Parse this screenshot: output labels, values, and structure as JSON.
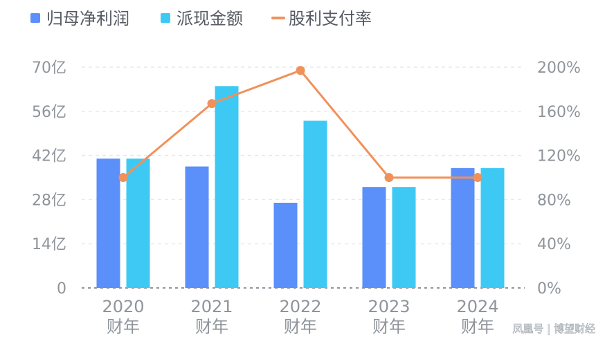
{
  "chart_data": {
    "type": "bar",
    "categories": [
      "2020",
      "2021",
      "2022",
      "2023",
      "2024"
    ],
    "category_sub_label": "财年",
    "series": [
      {
        "name": "归母净利润",
        "kind": "bar",
        "axis": "left",
        "color": "#5b8ff9",
        "values": [
          41,
          38.5,
          27,
          32,
          38
        ]
      },
      {
        "name": "派现金额",
        "kind": "bar",
        "axis": "left",
        "color": "#3ec9f5",
        "values": [
          41,
          64,
          53,
          32,
          38
        ]
      },
      {
        "name": "股利支付率",
        "kind": "line",
        "axis": "right",
        "color": "#f0915a",
        "values": [
          100,
          167,
          197,
          100,
          100
        ]
      }
    ],
    "y_left": {
      "ticks": [
        "0",
        "14亿",
        "28亿",
        "42亿",
        "56亿",
        "70亿"
      ],
      "min": 0,
      "max": 70
    },
    "y_right": {
      "ticks": [
        "0%",
        "40%",
        "80%",
        "120%",
        "160%",
        "200%"
      ],
      "min": 0,
      "max": 200
    },
    "grid": true,
    "legend_position": "top-left"
  },
  "watermark": "凤凰号 | 博望财经"
}
